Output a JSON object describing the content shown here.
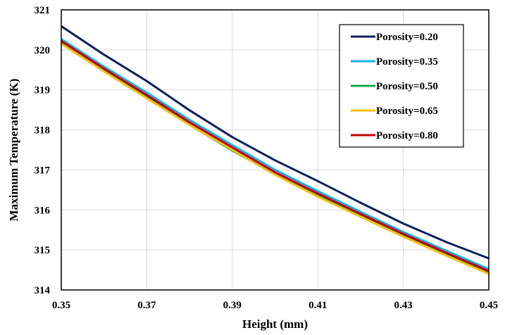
{
  "chart_data": {
    "type": "line",
    "title": "",
    "xlabel": "Height (mm)",
    "ylabel": "Maximum Temperature (K)",
    "xlim": [
      0.35,
      0.45
    ],
    "ylim": [
      314,
      321
    ],
    "xticks": [
      "0.35",
      "0.37",
      "0.39",
      "0.41",
      "0.43",
      "0.45"
    ],
    "yticks": [
      "314",
      "315",
      "316",
      "317",
      "318",
      "319",
      "320",
      "321"
    ],
    "grid": "horizontal and vertical, light gray",
    "legend_position": "top-right",
    "x": [
      0.35,
      0.36,
      0.37,
      0.38,
      0.39,
      0.4,
      0.41,
      0.42,
      0.43,
      0.44,
      0.45
    ],
    "series": [
      {
        "name": "Porosity=0.20",
        "color": "#0b1f5c",
        "values": [
          320.59,
          319.88,
          319.22,
          318.49,
          317.82,
          317.24,
          316.72,
          316.18,
          315.66,
          315.2,
          314.79
        ]
      },
      {
        "name": "Porosity=0.35",
        "color": "#11b0ea",
        "values": [
          320.27,
          319.58,
          318.93,
          318.25,
          317.62,
          317.0,
          316.47,
          315.95,
          315.45,
          314.98,
          314.52
        ]
      },
      {
        "name": "Porosity=0.50",
        "color": "#12a84c",
        "values": [
          320.18,
          319.5,
          318.83,
          318.13,
          317.48,
          316.9,
          316.37,
          315.86,
          315.36,
          314.89,
          314.44
        ]
      },
      {
        "name": "Porosity=0.65",
        "color": "#ffc000",
        "values": [
          320.15,
          319.46,
          318.79,
          318.12,
          317.5,
          316.88,
          316.33,
          315.83,
          315.33,
          314.86,
          314.4
        ]
      },
      {
        "name": "Porosity=0.80",
        "color": "#c00000",
        "values": [
          320.22,
          319.53,
          318.87,
          318.19,
          317.56,
          316.94,
          316.41,
          315.9,
          315.4,
          314.93,
          314.47
        ]
      }
    ]
  }
}
